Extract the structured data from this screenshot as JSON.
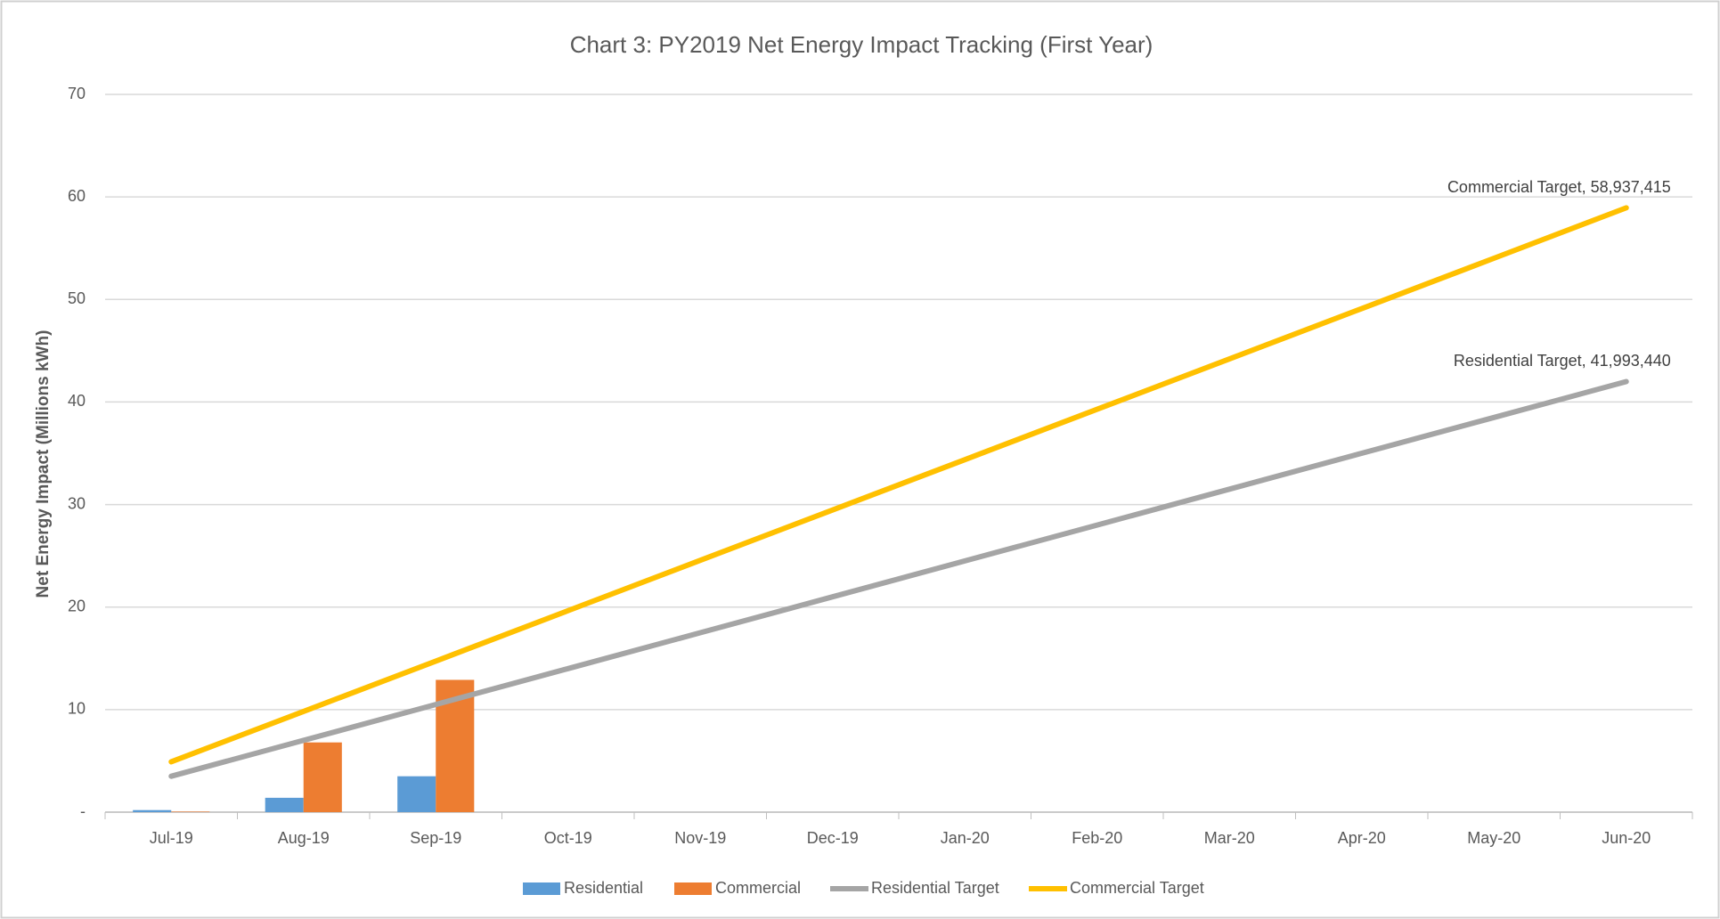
{
  "chart_data": {
    "type": "combo",
    "title": "Chart 3: PY2019 Net Energy Impact Tracking (First Year)",
    "y_label": "Net Energy Impact (Millions kWh)",
    "categories": [
      "Jul-19",
      "Aug-19",
      "Sep-19",
      "Oct-19",
      "Nov-19",
      "Dec-19",
      "Jan-20",
      "Feb-20",
      "Mar-20",
      "Apr-20",
      "May-20",
      "Jun-20"
    ],
    "series": [
      {
        "name": "Residential",
        "type": "bar",
        "color": "#5b9bd5",
        "values": [
          0.2,
          1.4,
          3.5,
          null,
          null,
          null,
          null,
          null,
          null,
          null,
          null,
          null
        ]
      },
      {
        "name": "Commercial",
        "type": "bar",
        "color": "#ed7d31",
        "values": [
          0.05,
          6.8,
          12.9,
          null,
          null,
          null,
          null,
          null,
          null,
          null,
          null,
          null
        ]
      },
      {
        "name": "Residential Target",
        "type": "line",
        "color": "#a5a5a5",
        "values": [
          3.5,
          7.0,
          10.5,
          14.0,
          17.5,
          21.0,
          24.5,
          28.0,
          31.5,
          35.0,
          38.49,
          41.99344
        ],
        "value_labels": [
          null,
          null,
          null,
          null,
          null,
          null,
          null,
          null,
          null,
          null,
          null,
          "Residential Target, 41,993,440"
        ]
      },
      {
        "name": "Commercial Target",
        "type": "line",
        "color": "#ffc000",
        "values": [
          4.91,
          9.82,
          14.73,
          19.65,
          24.56,
          29.47,
          34.38,
          39.29,
          44.2,
          49.11,
          54.02,
          58.937415
        ],
        "value_labels": [
          null,
          null,
          null,
          null,
          null,
          null,
          null,
          null,
          null,
          null,
          null,
          "Commercial Target, 58,937,415"
        ]
      }
    ],
    "ylim": [
      0,
      70
    ],
    "yticks": [
      {
        "value": 0,
        "label": "-"
      },
      10,
      20,
      30,
      40,
      50,
      60,
      70
    ],
    "grid": true,
    "legend": "bottom"
  }
}
